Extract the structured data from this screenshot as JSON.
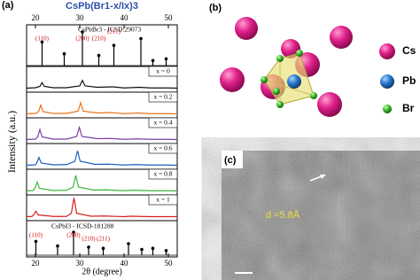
{
  "chart_data": {
    "type": "line",
    "panel_label": "(a)",
    "title": "CsPb(Br1-x/Ix)3",
    "x_label": "2θ (degree)",
    "y_label": "Intensity (a.u.)",
    "xlim": [
      18,
      52
    ],
    "xticks": [
      20,
      30,
      40,
      50
    ],
    "ylim": [
      0,
      100
    ],
    "references": [
      {
        "name": "CsPbBr3 - ICSD:29073",
        "x": [
          21.5,
          26.5,
          30.6,
          34.3,
          37.7,
          43.8,
          46.5,
          49.5
        ],
        "values": [
          70,
          35,
          100,
          30,
          60,
          80,
          15,
          20
        ],
        "labels": [
          "(110)",
          null,
          "(200)",
          "(210)",
          "(211)",
          null,
          null,
          null
        ]
      },
      {
        "name": "CsPbI3 - ICSD-181288",
        "x": [
          20.1,
          25,
          28.6,
          32,
          35.3,
          41,
          44,
          46.5,
          49.5
        ],
        "values": [
          60,
          40,
          100,
          35,
          30,
          50,
          25,
          30,
          20
        ],
        "labels": [
          "(110)",
          null,
          "(200)",
          "(210)",
          "(211)",
          null,
          null,
          null,
          null
        ]
      }
    ],
    "series": [
      {
        "name": "x = 0",
        "color": "#111111",
        "x": [
          18,
          20,
          21,
          21.5,
          22,
          24,
          27,
          30,
          30.6,
          31.2,
          34,
          37.5,
          40,
          43.5,
          46,
          50,
          52
        ],
        "values": [
          10,
          12,
          18,
          35,
          18,
          12,
          12,
          20,
          45,
          20,
          14,
          16,
          11,
          14,
          11,
          11,
          10
        ]
      },
      {
        "name": "x = 0.2",
        "color": "#e8731a",
        "x": [
          18,
          20,
          20.7,
          21.2,
          21.7,
          24,
          27,
          29.6,
          30.2,
          30.8,
          34,
          37,
          40,
          43,
          46,
          50,
          52
        ],
        "values": [
          10,
          12,
          20,
          50,
          20,
          12,
          12,
          22,
          60,
          22,
          14,
          16,
          11,
          14,
          11,
          11,
          10
        ]
      },
      {
        "name": "x = 0.4",
        "color": "#7b3fa8",
        "x": [
          18,
          20,
          20.5,
          21,
          21.5,
          24,
          27,
          29.3,
          29.9,
          30.5,
          34,
          37,
          40,
          43,
          46,
          50,
          52
        ],
        "values": [
          10,
          12,
          22,
          55,
          22,
          12,
          12,
          24,
          65,
          24,
          14,
          15,
          11,
          13,
          11,
          11,
          10
        ]
      },
      {
        "name": "x = 0.6",
        "color": "#1f5fbf",
        "x": [
          18,
          20,
          20.3,
          20.8,
          21.3,
          24,
          27,
          28.9,
          29.5,
          30.1,
          33.5,
          36.5,
          40,
          42.5,
          46,
          50,
          52
        ],
        "values": [
          10,
          12,
          20,
          45,
          20,
          12,
          13,
          28,
          75,
          28,
          14,
          15,
          11,
          13,
          11,
          11,
          10
        ]
      },
      {
        "name": "x = 0.8",
        "color": "#3cb43c",
        "x": [
          18,
          19.5,
          19.9,
          20.4,
          20.9,
          24,
          27,
          28.5,
          29.1,
          29.7,
          33,
          36,
          40,
          42,
          46,
          50,
          52
        ],
        "values": [
          10,
          12,
          22,
          50,
          22,
          12,
          13,
          28,
          80,
          28,
          14,
          15,
          11,
          13,
          11,
          11,
          10
        ]
      },
      {
        "name": "x = 1",
        "color": "#d62020",
        "x": [
          18,
          19.2,
          19.6,
          20.1,
          20.6,
          24,
          27,
          28.1,
          28.7,
          29.3,
          32.5,
          35.5,
          40,
          41.5,
          46,
          50,
          52
        ],
        "values": [
          10,
          11,
          18,
          35,
          18,
          11,
          11,
          25,
          95,
          25,
          12,
          13,
          10,
          12,
          10,
          10,
          10
        ]
      }
    ]
  },
  "panel_b": {
    "label": "(b)",
    "legend": [
      "Cs",
      "Pb",
      "Br"
    ]
  },
  "panel_c": {
    "label": "(c)",
    "annotation": "d =5.8Å"
  }
}
